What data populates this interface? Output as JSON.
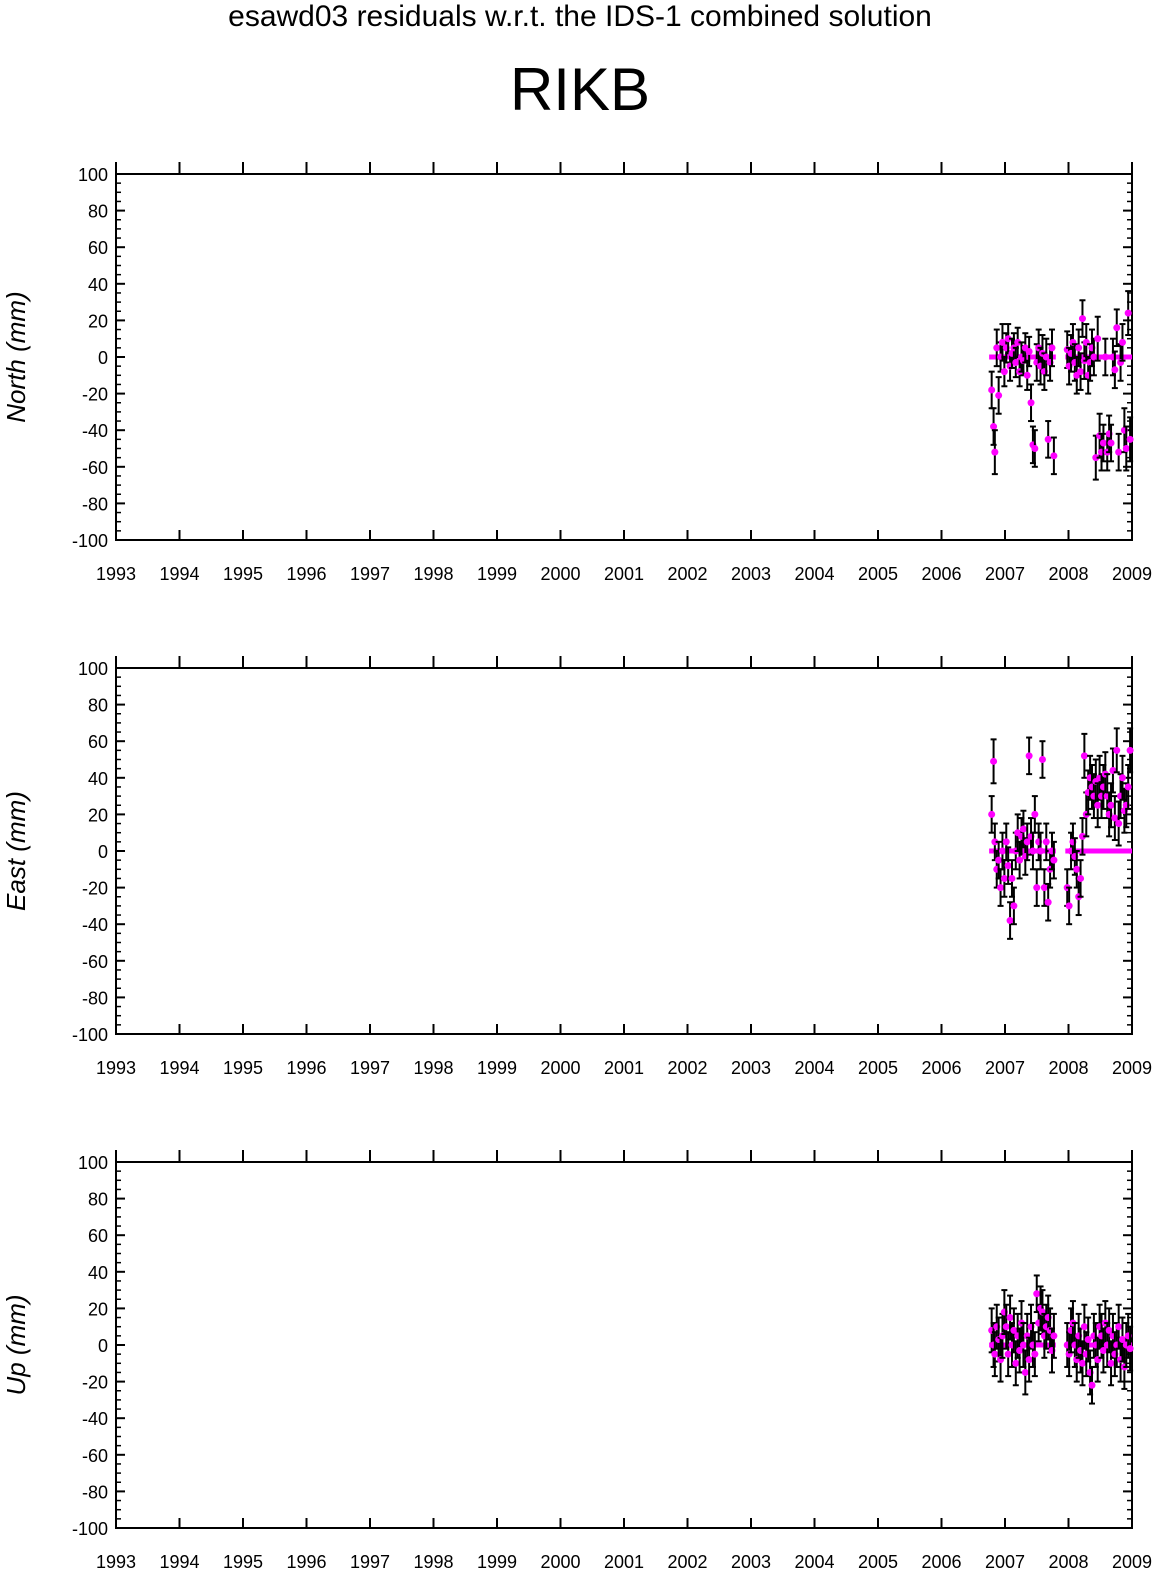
{
  "title": "esawd03 residuals w.r.t. the IDS-1 combined solution",
  "subtitle": "RIKB",
  "colors": {
    "points": "#ff00ff",
    "errorbars": "#000000",
    "axes": "#000000"
  },
  "chart_data": [
    {
      "type": "scatter",
      "ylabel": "North (mm)",
      "xlim": [
        1993,
        2009
      ],
      "ylim": [
        -100,
        100
      ],
      "x_ticks": [
        "1993",
        "1994",
        "1995",
        "1996",
        "1997",
        "1998",
        "1999",
        "2000",
        "2001",
        "2002",
        "2003",
        "2004",
        "2005",
        "2006",
        "2007",
        "2008",
        "2009"
      ],
      "y_ticks": [
        "100",
        "80",
        "60",
        "40",
        "20",
        "0",
        "-20",
        "-40",
        "-60",
        "-80",
        "-100"
      ],
      "zero_segments": [
        [
          2006.75,
          2007.8
        ],
        [
          2007.95,
          2009.0
        ]
      ],
      "x": [
        2006.79,
        2006.82,
        2006.84,
        2006.87,
        2006.9,
        2006.93,
        2006.96,
        2006.99,
        2007.02,
        2007.05,
        2007.08,
        2007.11,
        2007.14,
        2007.17,
        2007.2,
        2007.23,
        2007.26,
        2007.29,
        2007.32,
        2007.35,
        2007.38,
        2007.41,
        2007.44,
        2007.47,
        2007.5,
        2007.53,
        2007.56,
        2007.59,
        2007.62,
        2007.65,
        2007.68,
        2007.71,
        2007.74,
        2007.77,
        2007.98,
        2008.01,
        2008.04,
        2008.07,
        2008.1,
        2008.13,
        2008.16,
        2008.19,
        2008.22,
        2008.25,
        2008.28,
        2008.31,
        2008.34,
        2008.37,
        2008.4,
        2008.43,
        2008.46,
        2008.49,
        2008.52,
        2008.55,
        2008.58,
        2008.61,
        2008.64,
        2008.67,
        2008.7,
        2008.73,
        2008.76,
        2008.79,
        2008.82,
        2008.85,
        2008.88,
        2008.91,
        2008.94,
        2008.97
      ],
      "y": [
        -18,
        -38,
        -52,
        5,
        -21,
        0,
        8,
        -8,
        5,
        10,
        -5,
        2,
        5,
        -3,
        8,
        -8,
        0,
        -2,
        5,
        -10,
        3,
        -25,
        -48,
        -50,
        -3,
        5,
        -5,
        2,
        -8,
        0,
        -45,
        -3,
        5,
        -54,
        4,
        -5,
        2,
        8,
        -3,
        -10,
        5,
        -8,
        21,
        -2,
        8,
        -10,
        -3,
        5,
        0,
        -55,
        10,
        -43,
        -52,
        -47,
        0,
        -52,
        -42,
        -47,
        0,
        -7,
        16,
        -52,
        -3,
        8,
        -40,
        -50,
        24,
        -45
      ],
      "err": [
        10,
        10,
        12,
        10,
        10,
        8,
        10,
        8,
        8,
        8,
        8,
        8,
        8,
        8,
        8,
        8,
        8,
        8,
        8,
        8,
        8,
        10,
        10,
        10,
        10,
        10,
        10,
        10,
        10,
        10,
        10,
        10,
        10,
        10,
        10,
        10,
        10,
        10,
        10,
        10,
        10,
        10,
        10,
        10,
        10,
        10,
        10,
        10,
        10,
        12,
        12,
        12,
        10,
        10,
        10,
        10,
        10,
        10,
        10,
        10,
        10,
        10,
        10,
        10,
        12,
        12,
        12,
        12
      ]
    },
    {
      "type": "scatter",
      "ylabel": "East (mm)",
      "xlim": [
        1993,
        2009
      ],
      "ylim": [
        -100,
        100
      ],
      "x_ticks": [
        "1993",
        "1994",
        "1995",
        "1996",
        "1997",
        "1998",
        "1999",
        "2000",
        "2001",
        "2002",
        "2003",
        "2004",
        "2005",
        "2006",
        "2007",
        "2008",
        "2009"
      ],
      "y_ticks": [
        "100",
        "80",
        "60",
        "40",
        "20",
        "0",
        "-20",
        "-40",
        "-60",
        "-80",
        "-100"
      ],
      "zero_segments": [
        [
          2006.75,
          2007.8
        ],
        [
          2007.95,
          2009.0
        ]
      ],
      "x": [
        2006.79,
        2006.82,
        2006.84,
        2006.87,
        2006.9,
        2006.93,
        2006.96,
        2006.99,
        2007.02,
        2007.05,
        2007.08,
        2007.11,
        2007.14,
        2007.17,
        2007.2,
        2007.23,
        2007.26,
        2007.29,
        2007.32,
        2007.35,
        2007.38,
        2007.41,
        2007.44,
        2007.47,
        2007.5,
        2007.53,
        2007.56,
        2007.59,
        2007.62,
        2007.65,
        2007.68,
        2007.71,
        2007.74,
        2007.77,
        2007.98,
        2008.01,
        2008.04,
        2008.07,
        2008.1,
        2008.13,
        2008.16,
        2008.19,
        2008.22,
        2008.25,
        2008.28,
        2008.31,
        2008.34,
        2008.37,
        2008.4,
        2008.43,
        2008.46,
        2008.49,
        2008.52,
        2008.55,
        2008.58,
        2008.61,
        2008.64,
        2008.67,
        2008.7,
        2008.73,
        2008.76,
        2008.79,
        2008.82,
        2008.85,
        2008.88,
        2008.91,
        2008.94,
        2008.97
      ],
      "y": [
        20,
        49,
        5,
        -10,
        -5,
        -20,
        0,
        -15,
        5,
        -8,
        -38,
        -15,
        -30,
        0,
        10,
        -5,
        8,
        12,
        -3,
        5,
        52,
        8,
        0,
        20,
        -20,
        5,
        0,
        50,
        -20,
        5,
        -28,
        -10,
        0,
        -5,
        -20,
        -30,
        0,
        5,
        -3,
        -10,
        -25,
        -15,
        8,
        52,
        20,
        32,
        40,
        35,
        30,
        38,
        25,
        40,
        30,
        35,
        42,
        30,
        20,
        25,
        44,
        18,
        55,
        15,
        30,
        40,
        22,
        25,
        35,
        55
      ],
      "err": [
        10,
        12,
        10,
        10,
        10,
        10,
        10,
        10,
        10,
        10,
        10,
        10,
        10,
        10,
        10,
        10,
        10,
        10,
        10,
        10,
        10,
        10,
        10,
        10,
        10,
        10,
        10,
        10,
        10,
        10,
        10,
        10,
        10,
        10,
        10,
        10,
        10,
        10,
        10,
        10,
        10,
        10,
        10,
        12,
        12,
        12,
        12,
        12,
        12,
        12,
        12,
        12,
        12,
        12,
        12,
        12,
        12,
        12,
        12,
        12,
        12,
        12,
        12,
        12,
        12,
        12,
        12,
        12
      ]
    },
    {
      "type": "scatter",
      "ylabel": "Up (mm)",
      "xlim": [
        1993,
        2009
      ],
      "ylim": [
        -100,
        100
      ],
      "x_ticks": [
        "1993",
        "1994",
        "1995",
        "1996",
        "1997",
        "1998",
        "1999",
        "2000",
        "2001",
        "2002",
        "2003",
        "2004",
        "2005",
        "2006",
        "2007",
        "2008",
        "2009"
      ],
      "y_ticks": [
        "100",
        "80",
        "60",
        "40",
        "20",
        "0",
        "-20",
        "-40",
        "-60",
        "-80",
        "-100"
      ],
      "zero_segments": [
        [
          2006.75,
          2007.8
        ],
        [
          2007.95,
          2009.0
        ]
      ],
      "x": [
        2006.79,
        2006.82,
        2006.84,
        2006.87,
        2006.9,
        2006.93,
        2006.96,
        2006.99,
        2007.02,
        2007.05,
        2007.08,
        2007.11,
        2007.14,
        2007.17,
        2007.2,
        2007.23,
        2007.26,
        2007.29,
        2007.32,
        2007.35,
        2007.38,
        2007.41,
        2007.44,
        2007.47,
        2007.5,
        2007.53,
        2007.56,
        2007.59,
        2007.62,
        2007.65,
        2007.68,
        2007.71,
        2007.74,
        2007.77,
        2007.98,
        2008.01,
        2008.04,
        2008.07,
        2008.1,
        2008.13,
        2008.16,
        2008.19,
        2008.22,
        2008.25,
        2008.28,
        2008.31,
        2008.34,
        2008.37,
        2008.4,
        2008.43,
        2008.46,
        2008.49,
        2008.52,
        2008.55,
        2008.58,
        2008.61,
        2008.64,
        2008.67,
        2008.7,
        2008.73,
        2008.76,
        2008.79,
        2008.82,
        2008.85,
        2008.88,
        2008.91,
        2008.94,
        2008.97
      ],
      "y": [
        8,
        0,
        -5,
        10,
        3,
        -8,
        5,
        18,
        10,
        -5,
        15,
        0,
        8,
        -10,
        5,
        -3,
        12,
        0,
        -15,
        5,
        -8,
        10,
        0,
        -5,
        28,
        12,
        20,
        18,
        5,
        10,
        15,
        8,
        -3,
        5,
        0,
        -5,
        8,
        12,
        0,
        -8,
        5,
        -3,
        -10,
        10,
        -5,
        3,
        -15,
        -22,
        5,
        0,
        -8,
        10,
        5,
        -3,
        12,
        0,
        8,
        -10,
        5,
        -5,
        0,
        10,
        -8,
        3,
        -12,
        0,
        5,
        -2
      ],
      "err": [
        12,
        12,
        12,
        12,
        12,
        12,
        12,
        12,
        12,
        12,
        12,
        12,
        12,
        12,
        12,
        12,
        12,
        12,
        12,
        12,
        12,
        12,
        12,
        12,
        10,
        10,
        12,
        12,
        12,
        12,
        12,
        12,
        12,
        12,
        12,
        12,
        12,
        12,
        12,
        12,
        12,
        12,
        12,
        12,
        12,
        12,
        12,
        10,
        12,
        12,
        12,
        12,
        12,
        12,
        12,
        12,
        12,
        12,
        12,
        12,
        12,
        12,
        12,
        12,
        12,
        12,
        12,
        12
      ]
    }
  ]
}
